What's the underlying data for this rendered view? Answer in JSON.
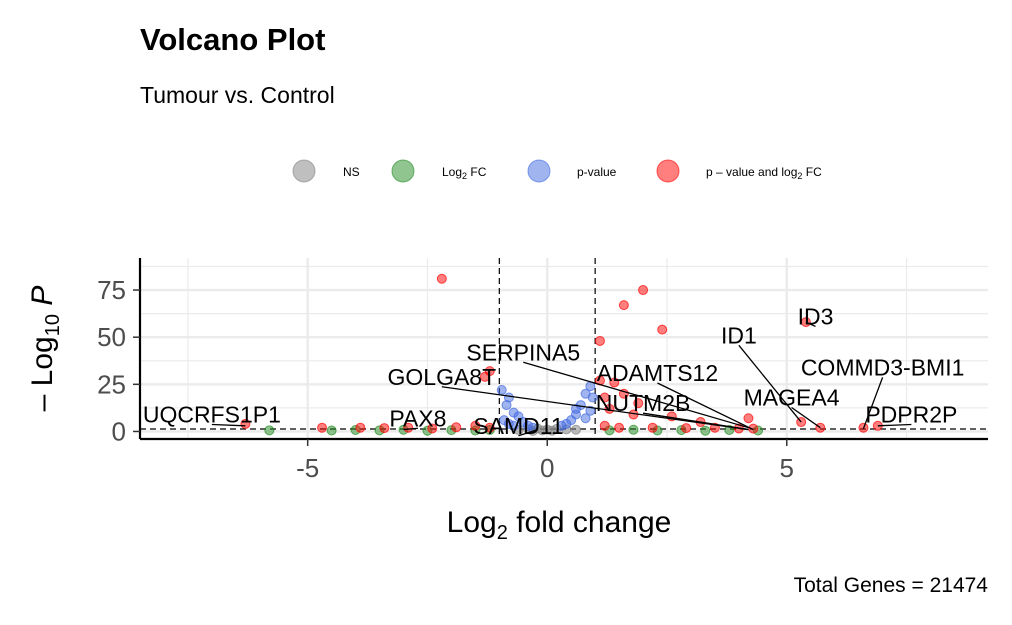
{
  "chart_data": {
    "type": "scatter",
    "title": "Volcano Plot",
    "subtitle": "Tumour vs. Control",
    "xlabel": "Log2 fold change",
    "ylabel": "-Log10 P",
    "caption": "Total Genes = 21474",
    "xlim": [
      -8.5,
      9.2
    ],
    "ylim": [
      -4,
      92
    ],
    "x_ticks": [
      -5,
      0,
      5
    ],
    "y_ticks": [
      0,
      25,
      50,
      75
    ],
    "fc_cutoff": 1,
    "p_cutoff": 1.3,
    "legend_position": "top",
    "legend": [
      {
        "key": "ns",
        "label": "NS",
        "color": "#808080"
      },
      {
        "key": "fc",
        "label": "Log",
        "sub": "2",
        "suffix": " FC",
        "color": "#228b22"
      },
      {
        "key": "p",
        "label": "p-value",
        "color": "#4169e1"
      },
      {
        "key": "both",
        "label": "p – value and log",
        "sub": "2",
        "suffix": " FC",
        "color": "#ff0000"
      }
    ],
    "series": [
      {
        "key": "ns",
        "color": "#808080"
      },
      {
        "key": "fc",
        "color": "#228b22"
      },
      {
        "key": "p",
        "color": "#4169e1"
      },
      {
        "key": "both",
        "color": "#ff0000"
      }
    ],
    "labeled_genes": [
      {
        "name": "ID3",
        "x": 5.4,
        "y": 58,
        "lx": 5.6,
        "ly": 61
      },
      {
        "name": "ID1",
        "x": 5.3,
        "y": 5,
        "lx": 4.0,
        "ly": 51
      },
      {
        "name": "SERPINA5",
        "x": 4.2,
        "y": 2,
        "lx": -0.5,
        "ly": 42
      },
      {
        "name": "ADAMTS12",
        "x": 4.3,
        "y": 1,
        "lx": 2.3,
        "ly": 31
      },
      {
        "name": "COMMD3-BMI1",
        "x": 6.6,
        "y": 1.5,
        "lx": 7.0,
        "ly": 34
      },
      {
        "name": "GOLGA8T",
        "x": 4.2,
        "y": 1,
        "lx": -2.2,
        "ly": 29
      },
      {
        "name": "MAGEA4",
        "x": 5.7,
        "y": 2,
        "lx": 5.1,
        "ly": 18
      },
      {
        "name": "NUTM2B",
        "x": 4.2,
        "y": 1,
        "lx": 2.0,
        "ly": 15
      },
      {
        "name": "UQCRFS1P1",
        "x": -6.3,
        "y": 3,
        "lx": -7.0,
        "ly": 9
      },
      {
        "name": "PAX8",
        "x": -3.0,
        "y": 1,
        "lx": -2.7,
        "ly": 7
      },
      {
        "name": "PDPR2P",
        "x": 6.9,
        "y": 3,
        "lx": 7.6,
        "ly": 9
      },
      {
        "name": "SAMD11",
        "x": -0.2,
        "y": 1,
        "lx": -0.6,
        "ly": 3
      }
    ],
    "points": [
      {
        "x": -2.2,
        "y": 81,
        "c": "both"
      },
      {
        "x": 2.0,
        "y": 75,
        "c": "both"
      },
      {
        "x": 1.6,
        "y": 67,
        "c": "both"
      },
      {
        "x": 2.4,
        "y": 54,
        "c": "both"
      },
      {
        "x": 1.1,
        "y": 48,
        "c": "both"
      },
      {
        "x": 5.4,
        "y": 58,
        "c": "both"
      },
      {
        "x": -1.2,
        "y": 32,
        "c": "both"
      },
      {
        "x": -1.3,
        "y": 29,
        "c": "both"
      },
      {
        "x": 1.1,
        "y": 27,
        "c": "both"
      },
      {
        "x": 1.4,
        "y": 26,
        "c": "both"
      },
      {
        "x": 1.6,
        "y": 20,
        "c": "both"
      },
      {
        "x": 1.2,
        "y": 18,
        "c": "both"
      },
      {
        "x": 1.9,
        "y": 15,
        "c": "both"
      },
      {
        "x": 2.6,
        "y": 8,
        "c": "both"
      },
      {
        "x": 1.8,
        "y": 9,
        "c": "both"
      },
      {
        "x": 1.3,
        "y": 12,
        "c": "both"
      },
      {
        "x": 3.2,
        "y": 5,
        "c": "both"
      },
      {
        "x": 5.3,
        "y": 5,
        "c": "both"
      },
      {
        "x": 4.2,
        "y": 7,
        "c": "both"
      },
      {
        "x": 5.7,
        "y": 2,
        "c": "both"
      },
      {
        "x": 6.6,
        "y": 2,
        "c": "both"
      },
      {
        "x": 6.9,
        "y": 3,
        "c": "both"
      },
      {
        "x": -6.3,
        "y": 4,
        "c": "both"
      },
      {
        "x": -4.7,
        "y": 2,
        "c": "both"
      },
      {
        "x": -3.9,
        "y": 2,
        "c": "both"
      },
      {
        "x": -3.4,
        "y": 1.8,
        "c": "both"
      },
      {
        "x": -2.9,
        "y": 2,
        "c": "both"
      },
      {
        "x": -2.4,
        "y": 1.6,
        "c": "both"
      },
      {
        "x": -1.9,
        "y": 2.2,
        "c": "both"
      },
      {
        "x": -1.5,
        "y": 3,
        "c": "both"
      },
      {
        "x": -1.2,
        "y": 2,
        "c": "both"
      },
      {
        "x": 1.2,
        "y": 3,
        "c": "both"
      },
      {
        "x": 1.5,
        "y": 2,
        "c": "both"
      },
      {
        "x": 2.2,
        "y": 2,
        "c": "both"
      },
      {
        "x": 2.9,
        "y": 1.8,
        "c": "both"
      },
      {
        "x": 3.5,
        "y": 2,
        "c": "both"
      },
      {
        "x": 4.0,
        "y": 1.6,
        "c": "both"
      },
      {
        "x": 4.3,
        "y": 1.5,
        "c": "both"
      },
      {
        "x": -0.9,
        "y": 6,
        "c": "p"
      },
      {
        "x": -0.8,
        "y": 4,
        "c": "p"
      },
      {
        "x": -0.6,
        "y": 8,
        "c": "p"
      },
      {
        "x": -0.7,
        "y": 3,
        "c": "p"
      },
      {
        "x": -0.5,
        "y": 5,
        "c": "p"
      },
      {
        "x": -0.4,
        "y": 3,
        "c": "p"
      },
      {
        "x": -0.3,
        "y": 2,
        "c": "p"
      },
      {
        "x": 0.3,
        "y": 3,
        "c": "p"
      },
      {
        "x": 0.4,
        "y": 4,
        "c": "p"
      },
      {
        "x": 0.5,
        "y": 6,
        "c": "p"
      },
      {
        "x": 0.6,
        "y": 9,
        "c": "p"
      },
      {
        "x": 0.7,
        "y": 14,
        "c": "p"
      },
      {
        "x": 0.8,
        "y": 20,
        "c": "p"
      },
      {
        "x": 0.9,
        "y": 24,
        "c": "p"
      },
      {
        "x": 0.95,
        "y": 18,
        "c": "p"
      },
      {
        "x": 0.6,
        "y": 12,
        "c": "p"
      },
      {
        "x": 0.8,
        "y": 7,
        "c": "p"
      },
      {
        "x": -0.85,
        "y": 14,
        "c": "p"
      },
      {
        "x": -0.95,
        "y": 22,
        "c": "p"
      },
      {
        "x": -0.8,
        "y": 18,
        "c": "p"
      },
      {
        "x": -0.7,
        "y": 10,
        "c": "p"
      },
      {
        "x": 0.9,
        "y": 11,
        "c": "p"
      },
      {
        "x": -0.4,
        "y": 1.2,
        "c": "ns"
      },
      {
        "x": -0.2,
        "y": 1.5,
        "c": "ns"
      },
      {
        "x": 0.0,
        "y": 1.0,
        "c": "ns"
      },
      {
        "x": 0.2,
        "y": 1.4,
        "c": "ns"
      },
      {
        "x": 0.4,
        "y": 1.1,
        "c": "ns"
      },
      {
        "x": -0.6,
        "y": 0.8,
        "c": "ns"
      },
      {
        "x": 0.6,
        "y": 0.9,
        "c": "ns"
      },
      {
        "x": -0.1,
        "y": 0.5,
        "c": "ns"
      },
      {
        "x": 0.1,
        "y": 0.4,
        "c": "ns"
      },
      {
        "x": -0.3,
        "y": 0.3,
        "c": "ns"
      },
      {
        "x": -4.5,
        "y": 0.5,
        "c": "fc"
      },
      {
        "x": -4.0,
        "y": 0.8,
        "c": "fc"
      },
      {
        "x": -3.5,
        "y": 0.6,
        "c": "fc"
      },
      {
        "x": -3.0,
        "y": 0.9,
        "c": "fc"
      },
      {
        "x": -2.5,
        "y": 0.4,
        "c": "fc"
      },
      {
        "x": -2.0,
        "y": 0.7,
        "c": "fc"
      },
      {
        "x": -1.5,
        "y": 0.5,
        "c": "fc"
      },
      {
        "x": -1.2,
        "y": 0.8,
        "c": "fc"
      },
      {
        "x": 1.3,
        "y": 0.6,
        "c": "fc"
      },
      {
        "x": 1.8,
        "y": 0.9,
        "c": "fc"
      },
      {
        "x": 2.3,
        "y": 0.5,
        "c": "fc"
      },
      {
        "x": 2.8,
        "y": 0.7,
        "c": "fc"
      },
      {
        "x": 3.3,
        "y": 0.4,
        "c": "fc"
      },
      {
        "x": 3.8,
        "y": 0.8,
        "c": "fc"
      },
      {
        "x": 4.4,
        "y": 0.5,
        "c": "fc"
      },
      {
        "x": -5.8,
        "y": 0.6,
        "c": "fc"
      }
    ]
  }
}
